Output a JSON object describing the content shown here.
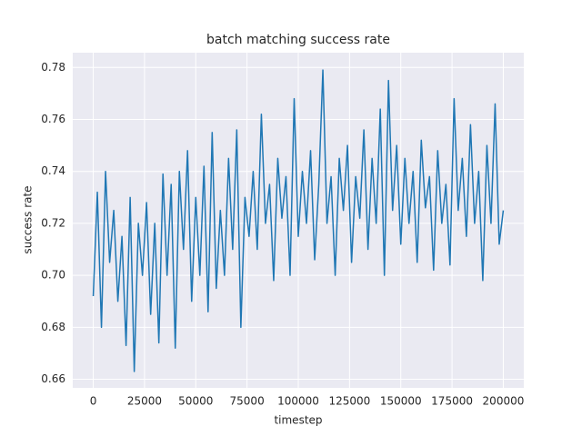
{
  "chart_data": {
    "type": "line",
    "title": "batch matching success rate",
    "x_label": "timestep",
    "y_label": "success rate",
    "x": [
      0,
      2000,
      4000,
      6000,
      8000,
      10000,
      12000,
      14000,
      16000,
      18000,
      20000,
      22000,
      24000,
      26000,
      28000,
      30000,
      32000,
      34000,
      36000,
      38000,
      40000,
      42000,
      44000,
      46000,
      48000,
      50000,
      52000,
      54000,
      56000,
      58000,
      60000,
      62000,
      64000,
      66000,
      68000,
      70000,
      72000,
      74000,
      76000,
      78000,
      80000,
      82000,
      84000,
      86000,
      88000,
      90000,
      92000,
      94000,
      96000,
      98000,
      100000,
      102000,
      104000,
      106000,
      108000,
      110000,
      112000,
      114000,
      116000,
      118000,
      120000,
      122000,
      124000,
      126000,
      128000,
      130000,
      132000,
      134000,
      136000,
      138000,
      140000,
      142000,
      144000,
      146000,
      148000,
      150000,
      152000,
      154000,
      156000,
      158000,
      160000,
      162000,
      164000,
      166000,
      168000,
      170000,
      172000,
      174000,
      176000,
      178000,
      180000,
      182000,
      184000,
      186000,
      188000,
      190000,
      192000,
      194000,
      196000,
      198000,
      200000
    ],
    "series": [
      {
        "color": "#1f77b4",
        "values": [
          0.692,
          0.732,
          0.68,
          0.74,
          0.705,
          0.725,
          0.69,
          0.715,
          0.673,
          0.73,
          0.663,
          0.72,
          0.7,
          0.728,
          0.685,
          0.72,
          0.674,
          0.739,
          0.7,
          0.735,
          0.672,
          0.74,
          0.71,
          0.748,
          0.69,
          0.73,
          0.7,
          0.742,
          0.686,
          0.755,
          0.695,
          0.725,
          0.7,
          0.745,
          0.71,
          0.756,
          0.68,
          0.73,
          0.715,
          0.74,
          0.71,
          0.762,
          0.72,
          0.735,
          0.698,
          0.745,
          0.722,
          0.738,
          0.7,
          0.768,
          0.715,
          0.74,
          0.72,
          0.748,
          0.706,
          0.735,
          0.779,
          0.72,
          0.738,
          0.7,
          0.745,
          0.725,
          0.75,
          0.705,
          0.738,
          0.722,
          0.756,
          0.71,
          0.745,
          0.72,
          0.764,
          0.7,
          0.775,
          0.725,
          0.75,
          0.712,
          0.745,
          0.72,
          0.74,
          0.705,
          0.752,
          0.726,
          0.738,
          0.702,
          0.748,
          0.72,
          0.735,
          0.704,
          0.768,
          0.725,
          0.745,
          0.715,
          0.758,
          0.72,
          0.74,
          0.698,
          0.75,
          0.72,
          0.766,
          0.712,
          0.725
        ]
      }
    ],
    "xlim": [
      -10000,
      210000
    ],
    "ylim": [
      0.6567,
      0.7857
    ],
    "xticks": [
      0,
      25000,
      50000,
      75000,
      100000,
      125000,
      150000,
      175000,
      200000
    ],
    "yticks": [
      0.66,
      0.68,
      {
        "value": 0.7,
        "label": "0.70"
      },
      0.72,
      0.74,
      0.76,
      0.78
    ],
    "grid": true
  }
}
